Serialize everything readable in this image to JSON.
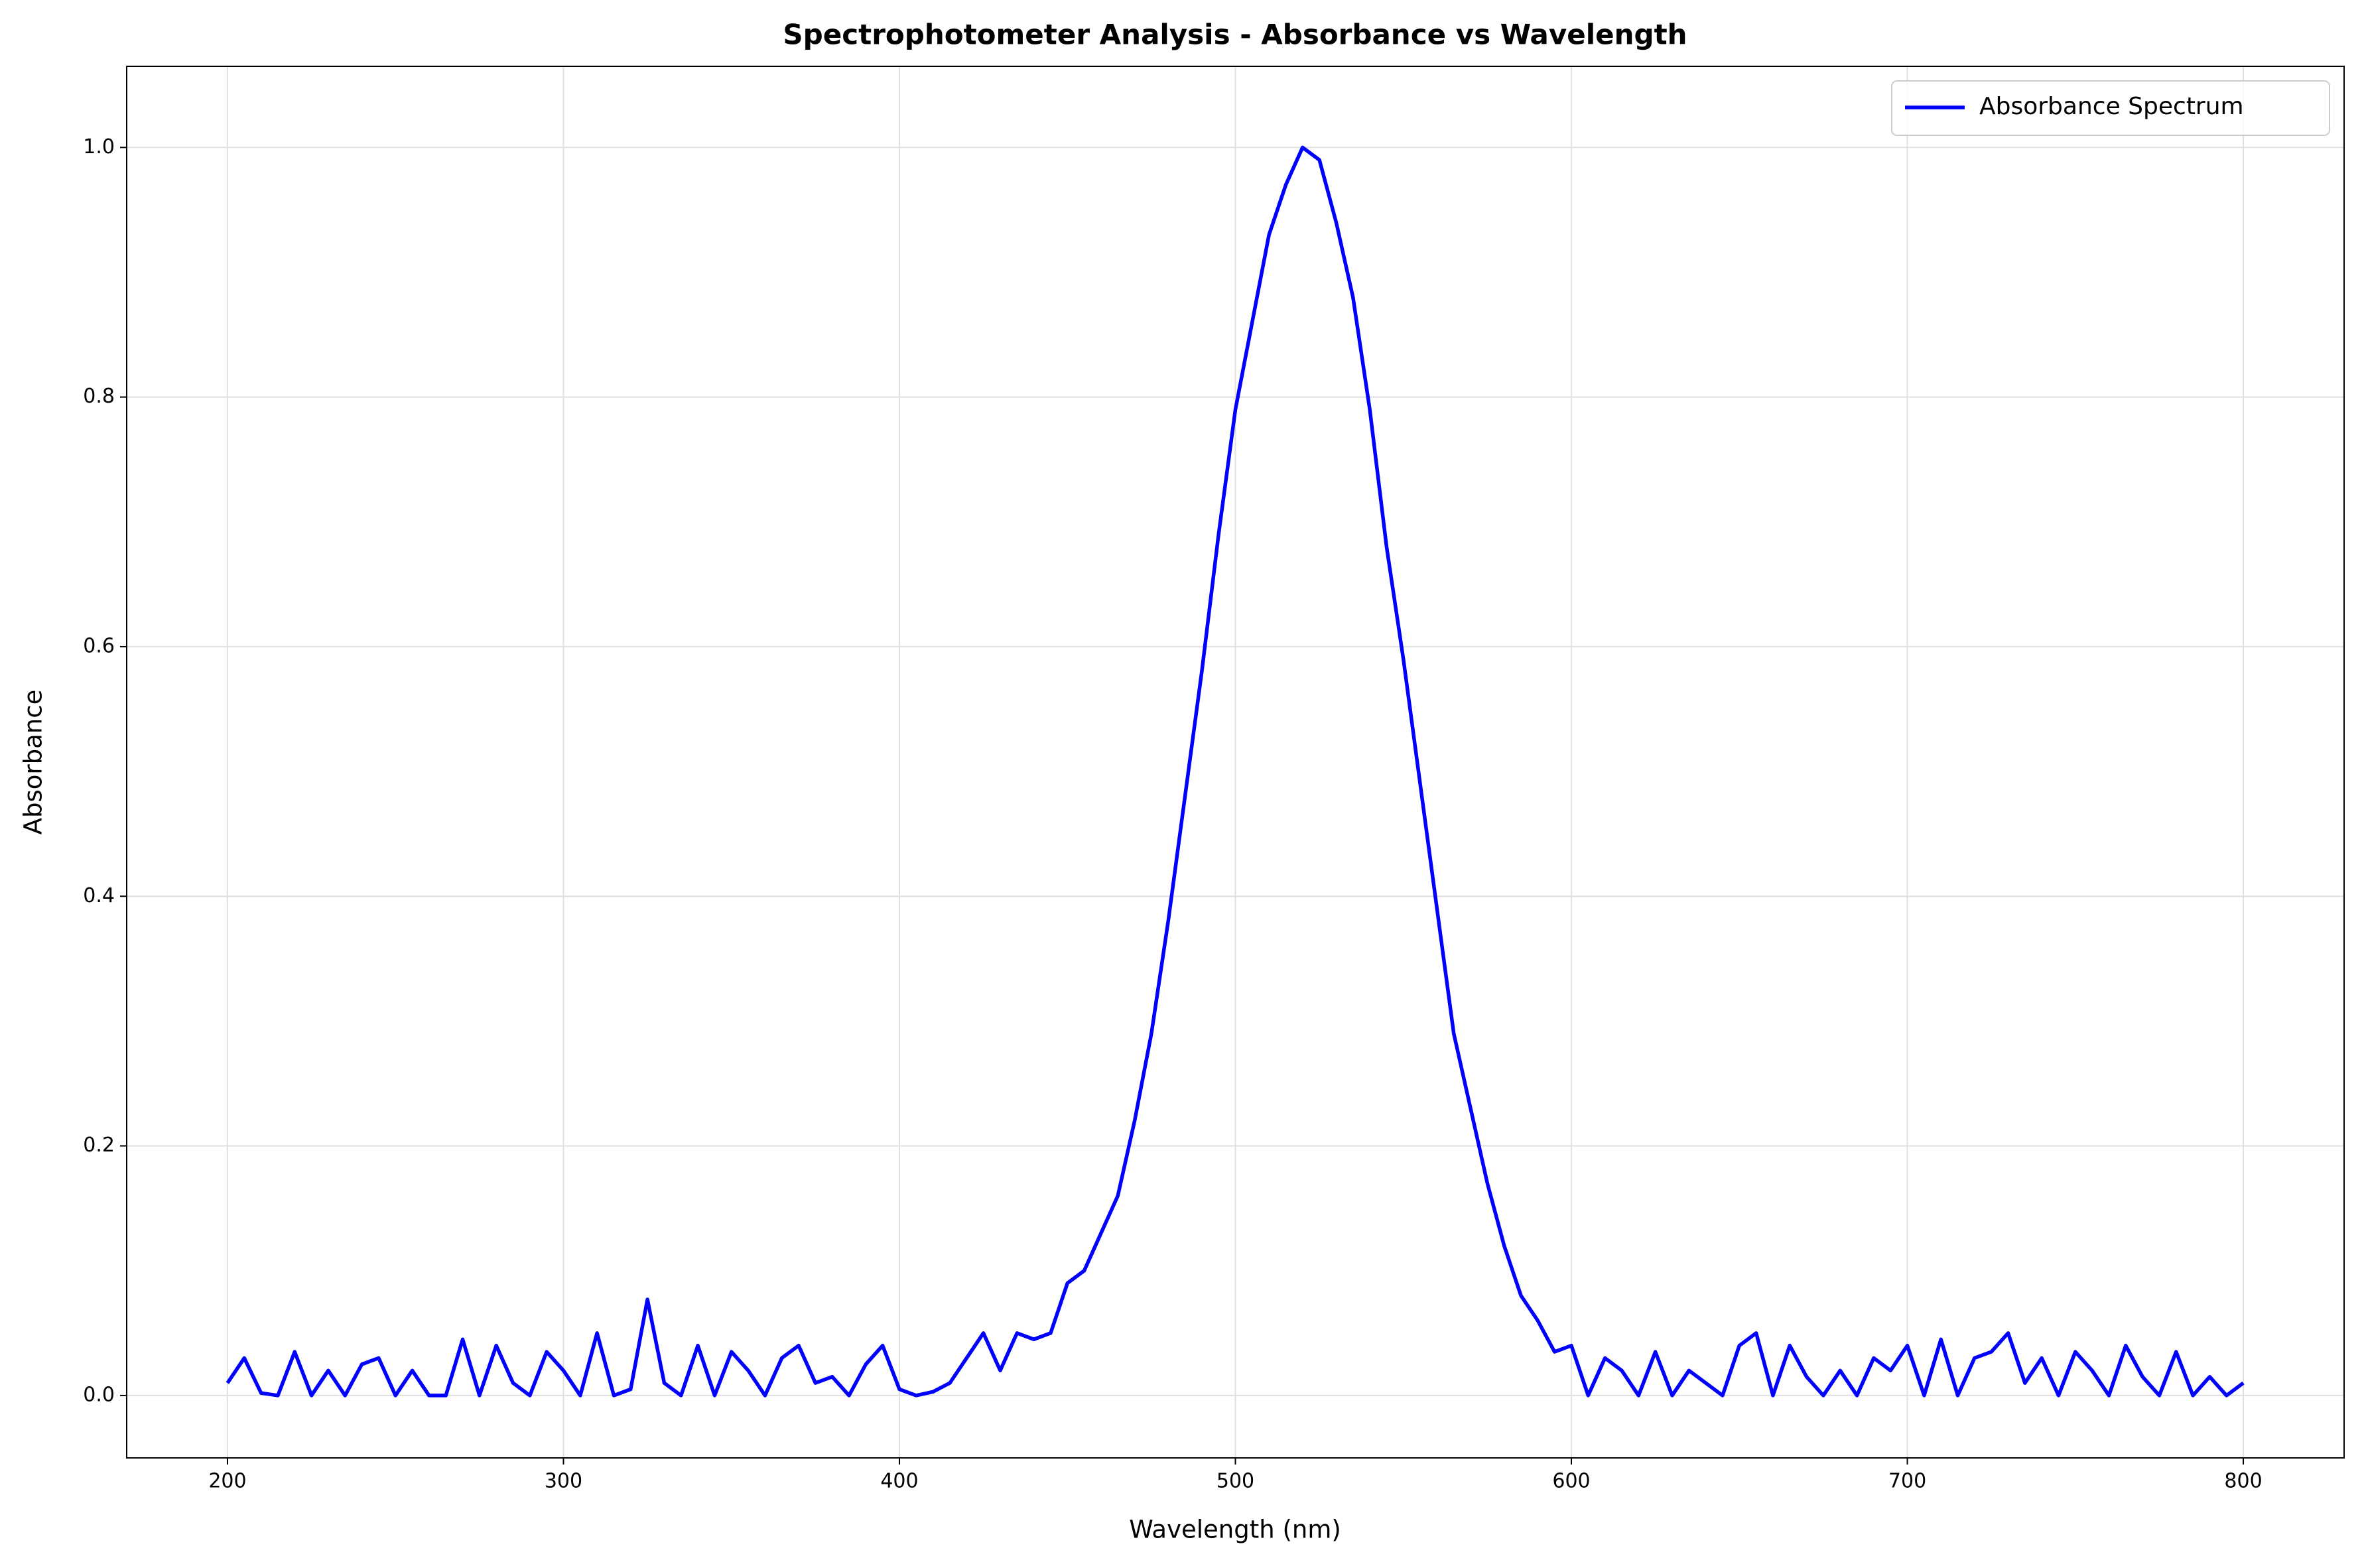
{
  "chart_data": {
    "type": "line",
    "title": "Spectrophotometer Analysis - Absorbance vs Wavelength",
    "xlabel": "Wavelength (nm)",
    "ylabel": "Absorbance",
    "x": [
      200,
      205,
      210,
      215,
      220,
      225,
      230,
      235,
      240,
      245,
      250,
      255,
      260,
      265,
      270,
      275,
      280,
      285,
      290,
      295,
      300,
      305,
      310,
      315,
      320,
      325,
      330,
      335,
      340,
      345,
      350,
      355,
      360,
      365,
      370,
      375,
      380,
      385,
      390,
      395,
      400,
      405,
      410,
      415,
      420,
      425,
      430,
      435,
      440,
      445,
      450,
      455,
      460,
      465,
      470,
      475,
      480,
      485,
      490,
      495,
      500,
      505,
      510,
      515,
      520,
      525,
      530,
      535,
      540,
      545,
      550,
      555,
      560,
      565,
      570,
      575,
      580,
      585,
      590,
      595,
      600,
      605,
      610,
      615,
      620,
      625,
      630,
      635,
      640,
      645,
      650,
      655,
      660,
      665,
      670,
      675,
      680,
      685,
      690,
      695,
      700,
      705,
      710,
      715,
      720,
      725,
      730,
      735,
      740,
      745,
      750,
      755,
      760,
      765,
      770,
      775,
      780,
      785,
      790,
      795,
      800
    ],
    "series": [
      {
        "name": "Absorbance Spectrum",
        "color": "#0000ff",
        "values": [
          0.01,
          0.03,
          0.002,
          0.0,
          0.035,
          0.0,
          0.02,
          0.0,
          0.025,
          0.03,
          0.0,
          0.02,
          0.0,
          0.0,
          0.045,
          0.0,
          0.04,
          0.01,
          0.0,
          0.035,
          0.02,
          0.0,
          0.05,
          0.0,
          0.005,
          0.077,
          0.01,
          0.0,
          0.04,
          0.0,
          0.035,
          0.02,
          0.0,
          0.03,
          0.04,
          0.01,
          0.015,
          0.0,
          0.025,
          0.04,
          0.005,
          0.0,
          0.003,
          0.01,
          0.03,
          0.05,
          0.02,
          0.05,
          0.045,
          0.05,
          0.09,
          0.1,
          0.13,
          0.16,
          0.22,
          0.29,
          0.38,
          0.48,
          0.58,
          0.69,
          0.79,
          0.86,
          0.93,
          0.97,
          1.0,
          0.99,
          0.94,
          0.88,
          0.79,
          0.68,
          0.59,
          0.49,
          0.39,
          0.29,
          0.23,
          0.17,
          0.12,
          0.08,
          0.06,
          0.035,
          0.04,
          0.0,
          0.03,
          0.02,
          0.0,
          0.035,
          0.0,
          0.02,
          0.01,
          0.0,
          0.04,
          0.05,
          0.0,
          0.04,
          0.015,
          0.0,
          0.02,
          0.0,
          0.03,
          0.02,
          0.04,
          0.0,
          0.045,
          0.0,
          0.03,
          0.035,
          0.05,
          0.01,
          0.03,
          0.0,
          0.035,
          0.02,
          0.0,
          0.04,
          0.015,
          0.0,
          0.035,
          0.0,
          0.015,
          0.0,
          0.01
        ]
      }
    ],
    "xlim": [
      170,
      830
    ],
    "xticks": [
      200,
      300,
      400,
      500,
      600,
      700,
      800
    ],
    "ylim": [
      -0.05,
      1.065
    ],
    "yticks": [
      {
        "value": 0,
        "label": "0.0"
      },
      {
        "value": 0.2,
        "label": "0.2"
      },
      {
        "value": 0.4,
        "label": "0.4"
      },
      {
        "value": 0.6,
        "label": "0.6"
      },
      {
        "value": 0.8,
        "label": "0.8"
      },
      {
        "value": 1,
        "label": "1.0"
      }
    ],
    "grid": true,
    "legend": "upper right"
  }
}
